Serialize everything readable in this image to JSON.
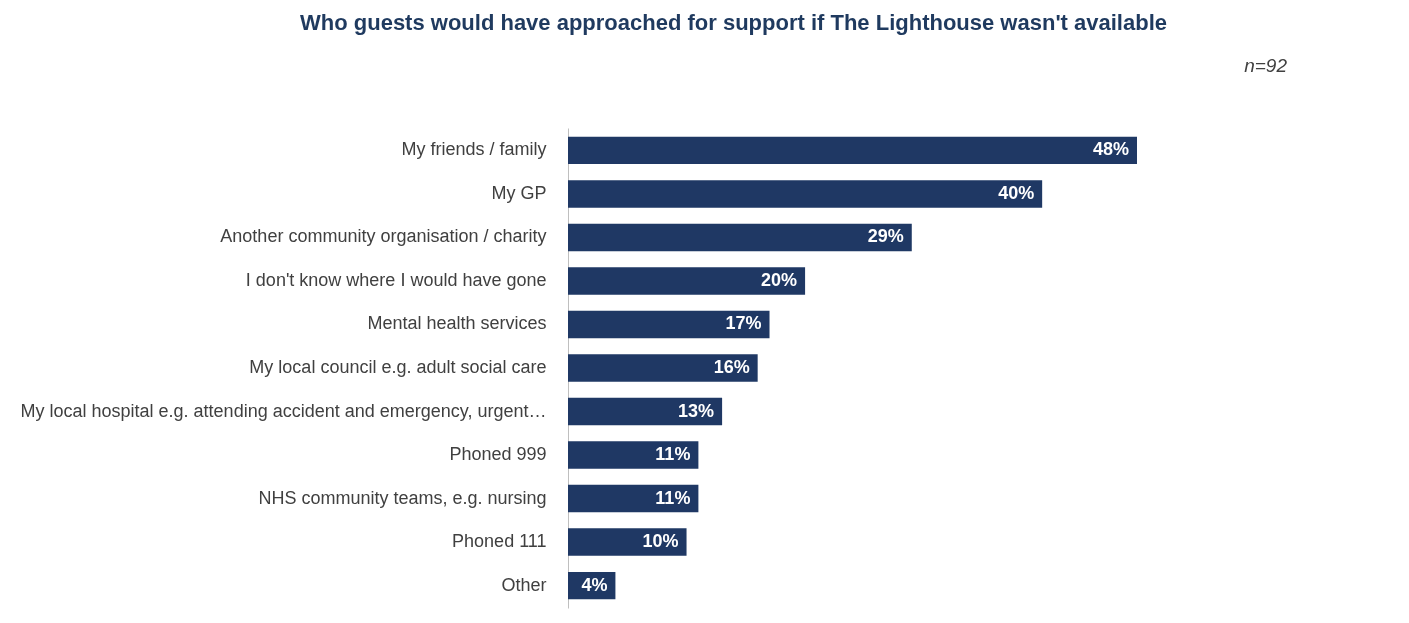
{
  "chart_data": {
    "type": "bar",
    "orientation": "horizontal",
    "title": "Who guests would have approached for support if The Lighthouse wasn't available",
    "categories": [
      "My friends / family",
      "My GP",
      "Another community organisation / charity",
      "I don't know where I would have gone",
      "Mental health services",
      "My local council e.g. adult social care",
      "My local hospital e.g. attending accident and emergency, urgent…",
      "Phoned 999",
      "NHS community teams, e.g. nursing",
      "Phoned 111",
      "Other"
    ],
    "values": [
      48,
      40,
      29,
      20,
      17,
      16,
      13,
      11,
      11,
      10,
      4
    ],
    "value_labels": [
      "48%",
      "40%",
      "29%",
      "20%",
      "17%",
      "16%",
      "13%",
      "11%",
      "11%",
      "10%",
      "4%"
    ],
    "color": "#1f3864",
    "annotations": [
      "n=92"
    ]
  }
}
